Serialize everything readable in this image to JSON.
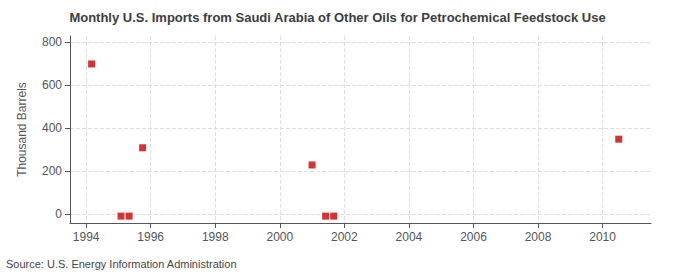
{
  "chart_data": {
    "type": "scatter",
    "title": "Monthly U.S. Imports from Saudi Arabia of Other Oils for Petrochemical Feedstock Use",
    "ylabel": "Thousand Barrels",
    "source": "Source: U.S. Energy Information Administration",
    "x": [
      1994.17,
      1995.08,
      1995.33,
      1995.75,
      2001.0,
      2001.42,
      2001.67,
      2010.5
    ],
    "values": [
      700,
      -8,
      -8,
      310,
      230,
      -8,
      -8,
      350
    ],
    "color": "#cc0000",
    "marker": "square",
    "xlim": [
      1993.5,
      2011.5
    ],
    "xticks": [
      1994,
      1996,
      1998,
      2000,
      2002,
      2004,
      2006,
      2008,
      2010
    ],
    "ylim": [
      -40,
      830
    ],
    "yticks": [
      0,
      200,
      400,
      600,
      800
    ],
    "grid": true
  }
}
